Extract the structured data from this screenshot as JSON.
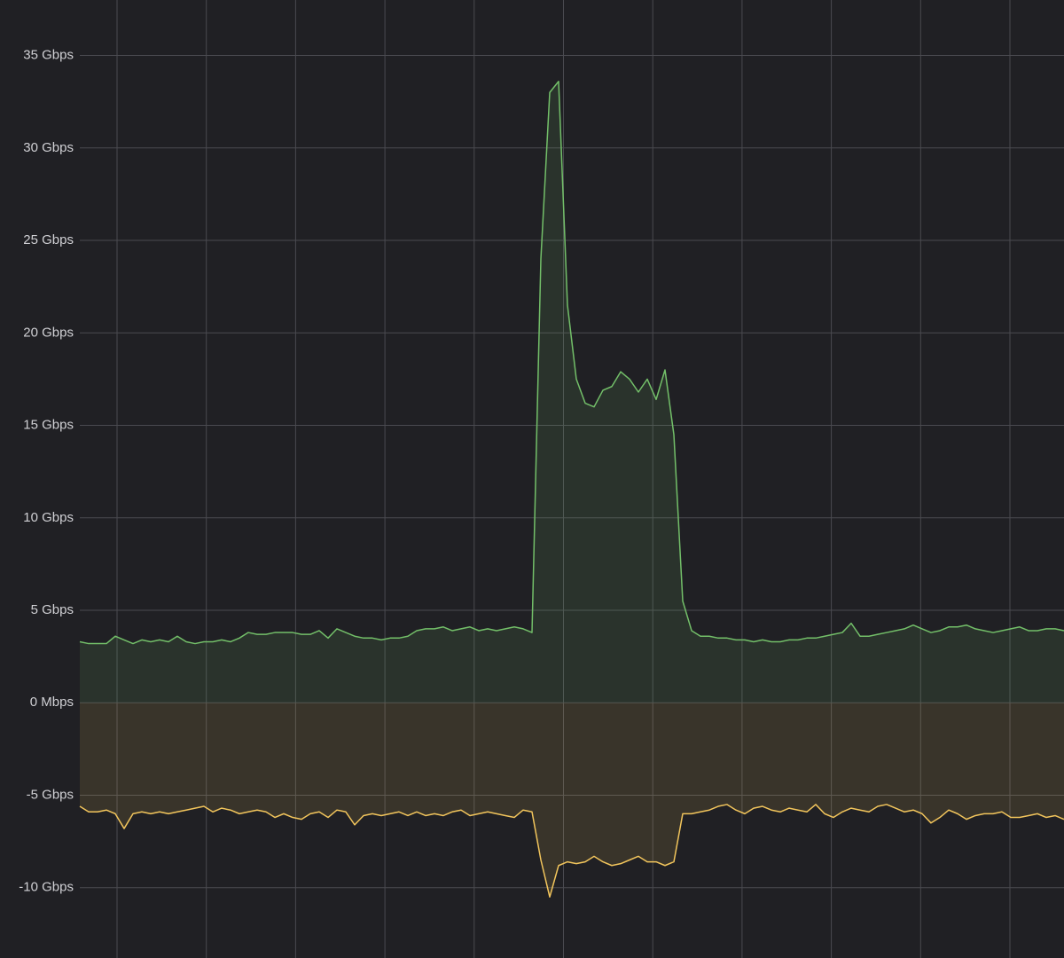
{
  "chart_data": {
    "type": "line",
    "ylim": [
      -13.8,
      38
    ],
    "yticks": [
      {
        "value": -10,
        "label": "-10 Gbps"
      },
      {
        "value": -5,
        "label": "-5 Gbps"
      },
      {
        "value": 0,
        "label": "0 Mbps"
      },
      {
        "value": 5,
        "label": "5 Gbps"
      },
      {
        "value": 10,
        "label": "10 Gbps"
      },
      {
        "value": 15,
        "label": "15 Gbps"
      },
      {
        "value": 20,
        "label": "20 Gbps"
      },
      {
        "value": 25,
        "label": "25 Gbps"
      },
      {
        "value": 30,
        "label": "30 Gbps"
      },
      {
        "value": 35,
        "label": "35 Gbps"
      }
    ],
    "grid": true,
    "fill": true,
    "series": [
      {
        "color": "#73bf69",
        "values": [
          3.3,
          3.2,
          3.2,
          3.2,
          3.6,
          3.4,
          3.2,
          3.4,
          3.3,
          3.4,
          3.3,
          3.6,
          3.3,
          3.2,
          3.3,
          3.3,
          3.4,
          3.3,
          3.5,
          3.8,
          3.7,
          3.7,
          3.8,
          3.8,
          3.8,
          3.7,
          3.7,
          3.9,
          3.5,
          4.0,
          3.8,
          3.6,
          3.5,
          3.5,
          3.4,
          3.5,
          3.5,
          3.6,
          3.9,
          4.0,
          4.0,
          4.1,
          3.9,
          4.0,
          4.1,
          3.9,
          4.0,
          3.9,
          4.0,
          4.1,
          4.0,
          3.8,
          24,
          33,
          33.6,
          21.5,
          17.5,
          16.2,
          16,
          16.9,
          17.1,
          17.9,
          17.5,
          16.8,
          17.5,
          16.4,
          18,
          14.5,
          5.5,
          3.9,
          3.6,
          3.6,
          3.5,
          3.5,
          3.4,
          3.4,
          3.3,
          3.4,
          3.3,
          3.3,
          3.4,
          3.4,
          3.5,
          3.5,
          3.6,
          3.7,
          3.8,
          4.3,
          3.6,
          3.6,
          3.7,
          3.8,
          3.9,
          4.0,
          4.2,
          4.0,
          3.8,
          3.9,
          4.1,
          4.1,
          4.2,
          4.0,
          3.9,
          3.8,
          3.9,
          4.0,
          4.1,
          3.9,
          3.9,
          4.0,
          4.0,
          3.9
        ]
      },
      {
        "color": "#f2c55c",
        "values": [
          -5.6,
          -5.9,
          -5.9,
          -5.8,
          -6.0,
          -6.8,
          -6.0,
          -5.9,
          -6.0,
          -5.9,
          -6.0,
          -5.9,
          -5.8,
          -5.7,
          -5.6,
          -5.9,
          -5.7,
          -5.8,
          -6.0,
          -5.9,
          -5.8,
          -5.9,
          -6.2,
          -6.0,
          -6.2,
          -6.3,
          -6.0,
          -5.9,
          -6.2,
          -5.8,
          -5.9,
          -6.6,
          -6.1,
          -6.0,
          -6.1,
          -6.0,
          -5.9,
          -6.1,
          -5.9,
          -6.1,
          -6.0,
          -6.1,
          -5.9,
          -5.8,
          -6.1,
          -6.0,
          -5.9,
          -6.0,
          -6.1,
          -6.2,
          -5.8,
          -5.9,
          -8.5,
          -10.5,
          -8.8,
          -8.6,
          -8.7,
          -8.6,
          -8.3,
          -8.6,
          -8.8,
          -8.7,
          -8.5,
          -8.3,
          -8.6,
          -8.6,
          -8.8,
          -8.6,
          -6.0,
          -6.0,
          -5.9,
          -5.8,
          -5.6,
          -5.5,
          -5.8,
          -6.0,
          -5.7,
          -5.6,
          -5.8,
          -5.9,
          -5.7,
          -5.8,
          -5.9,
          -5.5,
          -6.0,
          -6.2,
          -5.9,
          -5.7,
          -5.8,
          -5.9,
          -5.6,
          -5.5,
          -5.7,
          -5.9,
          -5.8,
          -6.0,
          -6.5,
          -6.2,
          -5.8,
          -6.0,
          -6.3,
          -6.1,
          -6.0,
          -6.0,
          -5.9,
          -6.2,
          -6.2,
          -6.1,
          -6.0,
          -6.2,
          -6.1,
          -6.3
        ]
      }
    ]
  }
}
